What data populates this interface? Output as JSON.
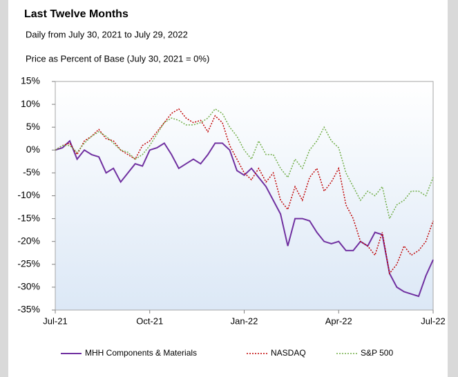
{
  "chart_data": {
    "type": "line",
    "title": "Last Twelve Months",
    "subtitle": "Daily from July 30, 2021 to July 29, 2022",
    "y_label": "Price as Percent of Base (July 30, 2021 = 0%)",
    "categories": [
      "Jul-21",
      null,
      null,
      null,
      null,
      null,
      null,
      null,
      null,
      null,
      null,
      null,
      null,
      "Oct-21",
      null,
      null,
      null,
      null,
      null,
      null,
      null,
      null,
      null,
      null,
      null,
      null,
      "Jan-22",
      null,
      null,
      null,
      null,
      null,
      null,
      null,
      null,
      null,
      null,
      null,
      null,
      "Apr-22",
      null,
      null,
      null,
      null,
      null,
      null,
      null,
      null,
      null,
      null,
      null,
      null,
      "Jul-22"
    ],
    "series": [
      {
        "name": "MHH Components & Materials",
        "color": "#7030a0",
        "dash": "solid",
        "values": [
          0,
          0.5,
          2,
          -2,
          0,
          -1,
          -1.5,
          -5,
          -4,
          -7,
          -5,
          -3,
          -3.5,
          0,
          0.5,
          1.5,
          -1,
          -4,
          -3,
          -2,
          -3,
          -1,
          1.5,
          1.5,
          0,
          -4.5,
          -5.5,
          -4,
          -6,
          -8,
          -11,
          -14,
          -21,
          -15,
          -15,
          -15.5,
          -18,
          -20,
          -20.5,
          -20,
          -22,
          -22,
          -20,
          -21,
          -18,
          -18.5,
          -27,
          -30,
          -31,
          -31.5,
          -32,
          -27.5,
          -24
        ]
      },
      {
        "name": "NASDAQ",
        "color": "#c00000",
        "dash": "dotted",
        "values": [
          0,
          1,
          1.5,
          -1,
          2,
          3,
          4.5,
          2.5,
          2,
          0,
          -1,
          -2,
          1,
          2,
          4,
          6,
          8,
          9,
          7,
          6,
          6.5,
          4,
          7.5,
          6,
          1,
          -2,
          -5,
          -6.5,
          -4,
          -7,
          -5,
          -11,
          -13,
          -8,
          -11,
          -6,
          -4,
          -9,
          -7,
          -4,
          -12,
          -15,
          -20,
          -21,
          -23,
          -18,
          -27,
          -25,
          -21,
          -23,
          -22,
          -20,
          -15.5
        ]
      },
      {
        "name": "S&P 500",
        "color": "#70ad47",
        "dash": "dotted",
        "values": [
          0,
          1,
          1,
          -0.5,
          1.5,
          3,
          4,
          3,
          1.5,
          0,
          -0.5,
          -2,
          -1,
          1,
          3.5,
          6,
          7,
          6.5,
          5.5,
          5.5,
          6,
          7,
          9,
          8,
          5,
          3,
          0,
          -2,
          2,
          -1,
          -1,
          -4,
          -6,
          -2,
          -4,
          0,
          2,
          5,
          2,
          0.5,
          -5,
          -8,
          -11,
          -9,
          -10,
          -8,
          -15,
          -12,
          -11,
          -9,
          -9,
          -10,
          -6
        ]
      }
    ],
    "ylim": [
      -35,
      15
    ],
    "yticks": [
      {
        "value": 15,
        "label": "15%"
      },
      {
        "value": 10,
        "label": "10%"
      },
      {
        "value": 5,
        "label": "5%"
      },
      {
        "value": 0,
        "label": "0%"
      },
      {
        "value": -5,
        "label": "-5%"
      },
      {
        "value": -10,
        "label": "-10%"
      },
      {
        "value": -15,
        "label": "-15%"
      },
      {
        "value": -20,
        "label": "-20%"
      },
      {
        "value": -25,
        "label": "-25%"
      },
      {
        "value": -30,
        "label": "-30%"
      },
      {
        "value": -35,
        "label": "-35%"
      }
    ],
    "grid": false,
    "legend": "bottom"
  }
}
